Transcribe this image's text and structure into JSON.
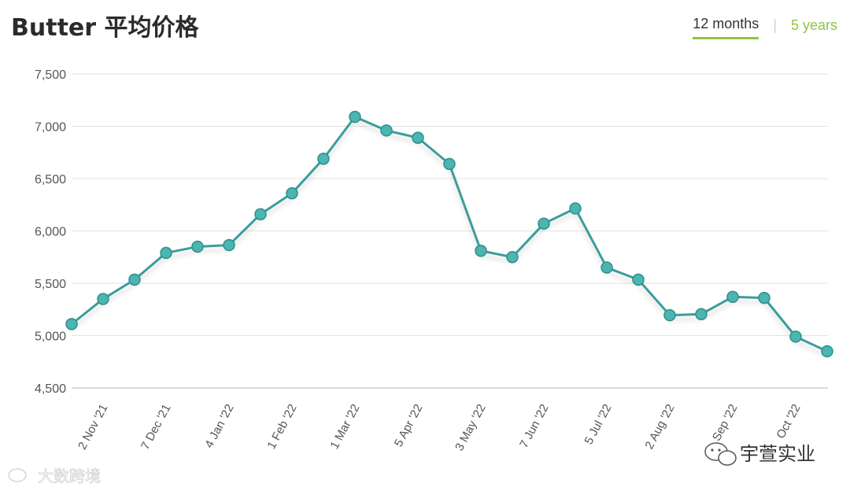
{
  "header": {
    "title": "Butter 平均价格",
    "tabs": [
      {
        "label": "12 months",
        "active": true
      },
      {
        "label": "5 years",
        "active": false
      }
    ],
    "tab_separator": "|"
  },
  "colors": {
    "line": "#3a9d9b",
    "marker": "#4bb5b1",
    "accent": "#8dc63f",
    "grid": "#e3e3e3"
  },
  "watermarks": {
    "left": "大数跨境",
    "right": "宇萱实业"
  },
  "chart_data": {
    "type": "line",
    "title": "Butter 平均价格",
    "xlabel": "",
    "ylabel": "",
    "ylim": [
      4500,
      7500
    ],
    "yticks": [
      4500,
      5000,
      5500,
      6000,
      6500,
      7000,
      7500
    ],
    "ytick_labels": [
      "4,500",
      "5,000",
      "5,500",
      "6,000",
      "6,500",
      "7,000",
      "7,500"
    ],
    "grid": true,
    "xtick_labels": [
      "2 Nov '21",
      "7 Dec '21",
      "4 Jan '22",
      "1 Feb '22",
      "1 Mar '22",
      "5 Apr '22",
      "3 May '22",
      "7 Jun '22",
      "5 Jul '22",
      "2 Aug '22",
      "Sep '22",
      "Oct '22"
    ],
    "series": [
      {
        "values": [
          5110,
          5350,
          5535,
          5790,
          5850,
          5865,
          6160,
          6360,
          6690,
          7090,
          6960,
          6890,
          6640,
          5810,
          5750,
          6070,
          6215,
          5650,
          5535,
          5195,
          5205,
          5370,
          5360,
          4990,
          4850
        ]
      }
    ]
  }
}
